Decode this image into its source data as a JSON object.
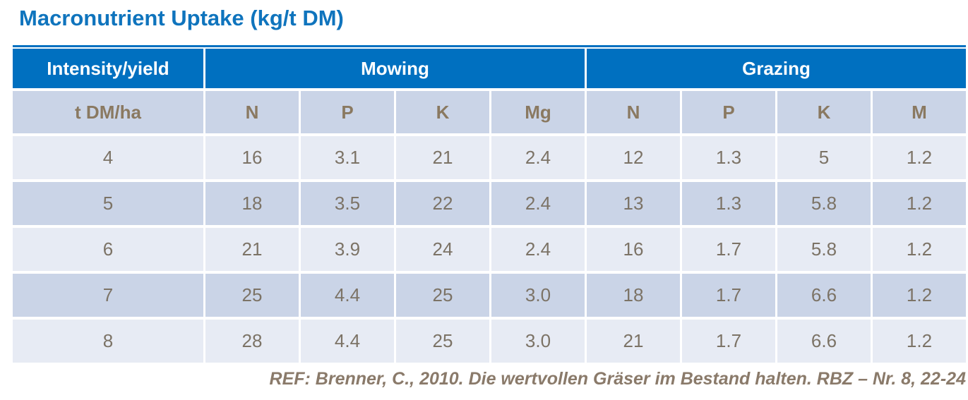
{
  "title": "Macronutrient Uptake (kg/t DM)",
  "footer": "REF: Brenner, C., 2010. Die wertvollen  Gräser im Bestand halten.  RBZ – Nr. 8, 22-24",
  "colors": {
    "title_blue": "#0F74BD",
    "header_blue": "#0070C0",
    "header_text": "#FFFFFF",
    "subheader_bg": "#CAD4E7",
    "subheader_text": "#8A7961",
    "row_light": "#E7EBF4",
    "row_dark": "#CAD4E7",
    "cell_text": "#7C7366",
    "footer_text": "#8A7A6A"
  },
  "chart_data": {
    "type": "table",
    "title": "Macronutrient Uptake (kg/t DM)",
    "group_headers": [
      {
        "label": "Intensity/yield",
        "colspan": 1
      },
      {
        "label": "Mowing",
        "colspan": 4
      },
      {
        "label": "Grazing",
        "colspan": 4
      }
    ],
    "columns": [
      "t DM/ha",
      "N",
      "P",
      "K",
      "Mg",
      "N",
      "P",
      "K",
      "M"
    ],
    "rows": [
      [
        "4",
        "16",
        "3.1",
        "21",
        "2.4",
        "12",
        "1.3",
        "5",
        "1.2"
      ],
      [
        "5",
        "18",
        "3.5",
        "22",
        "2.4",
        "13",
        "1.3",
        "5.8",
        "1.2"
      ],
      [
        "6",
        "21",
        "3.9",
        "24",
        "2.4",
        "16",
        "1.7",
        "5.8",
        "1.2"
      ],
      [
        "7",
        "25",
        "4.4",
        "25",
        "3.0",
        "18",
        "1.7",
        "6.6",
        "1.2"
      ],
      [
        "8",
        "28",
        "4.4",
        "25",
        "3.0",
        "21",
        "1.7",
        "6.6",
        "1.2"
      ]
    ]
  }
}
